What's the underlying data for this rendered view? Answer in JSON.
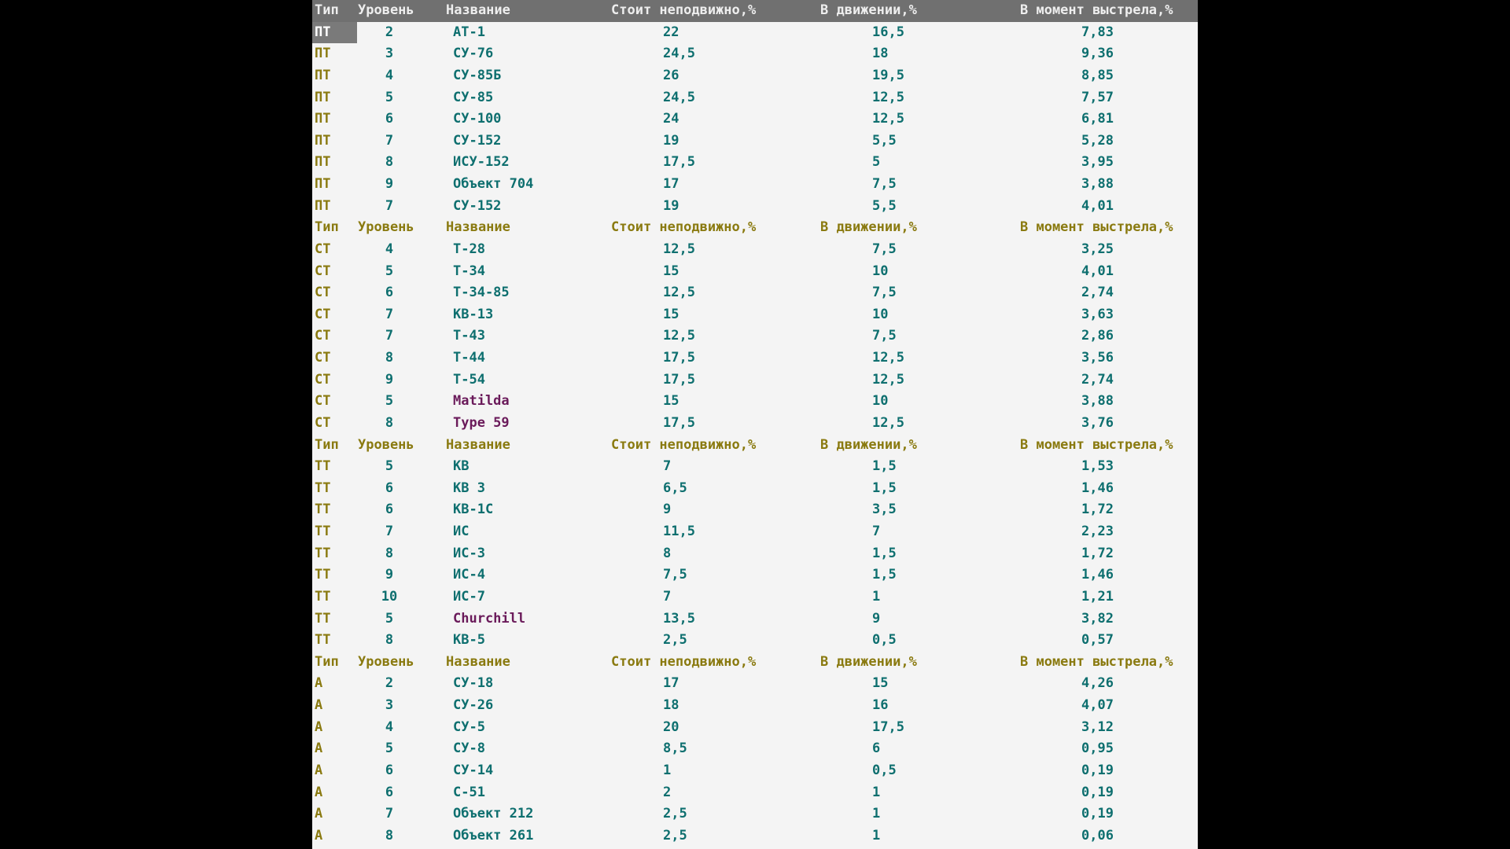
{
  "headers": {
    "type": "Тип",
    "level": "Уровень",
    "name": "Название",
    "standing": "Стоит неподвижно,%",
    "moving": "В движении,%",
    "shooting": "В момент выстрела,%"
  },
  "groups": [
    {
      "rows": [
        {
          "type": "ПТ",
          "level": "2",
          "name": "АТ-1",
          "standing": "22",
          "moving": "16,5",
          "shot": "7,83"
        },
        {
          "type": "ПТ",
          "level": "3",
          "name": "СУ-76",
          "standing": "24,5",
          "moving": "18",
          "shot": "9,36"
        },
        {
          "type": "ПТ",
          "level": "4",
          "name": "СУ-85Б",
          "standing": "26",
          "moving": "19,5",
          "shot": "8,85"
        },
        {
          "type": "ПТ",
          "level": "5",
          "name": "СУ-85",
          "standing": "24,5",
          "moving": "12,5",
          "shot": "7,57"
        },
        {
          "type": "ПТ",
          "level": "6",
          "name": "СУ-100",
          "standing": "24",
          "moving": "12,5",
          "shot": "6,81"
        },
        {
          "type": "ПТ",
          "level": "7",
          "name": "СУ-152",
          "standing": "19",
          "moving": "5,5",
          "shot": "5,28"
        },
        {
          "type": "ПТ",
          "level": "8",
          "name": "ИСУ-152",
          "standing": "17,5",
          "moving": "5",
          "shot": "3,95"
        },
        {
          "type": "ПТ",
          "level": "9",
          "name": "Объект 704",
          "standing": "17",
          "moving": "7,5",
          "shot": "3,88"
        },
        {
          "type": "ПТ",
          "level": "7",
          "name": "СУ-152",
          "standing": "19",
          "moving": "5,5",
          "shot": "4,01"
        }
      ]
    },
    {
      "rows": [
        {
          "type": "СТ",
          "level": "4",
          "name": "Т-28",
          "standing": "12,5",
          "moving": "7,5",
          "shot": "3,25"
        },
        {
          "type": "СТ",
          "level": "5",
          "name": "Т-34",
          "standing": "15",
          "moving": "10",
          "shot": "4,01"
        },
        {
          "type": "СТ",
          "level": "6",
          "name": "Т-34-85",
          "standing": "12,5",
          "moving": "7,5",
          "shot": "2,74"
        },
        {
          "type": "СТ",
          "level": "7",
          "name": "КВ-13",
          "standing": "15",
          "moving": "10",
          "shot": "3,63"
        },
        {
          "type": "СТ",
          "level": "7",
          "name": "Т-43",
          "standing": "12,5",
          "moving": "7,5",
          "shot": "2,86"
        },
        {
          "type": "СТ",
          "level": "8",
          "name": "Т-44",
          "standing": "17,5",
          "moving": "12,5",
          "shot": "3,56"
        },
        {
          "type": "СТ",
          "level": "9",
          "name": "Т-54",
          "standing": "17,5",
          "moving": "12,5",
          "shot": "2,74"
        },
        {
          "type": "СТ",
          "level": "5",
          "name": "Matilda",
          "standing": "15",
          "moving": "10",
          "shot": "3,88",
          "foreign": true
        },
        {
          "type": "СТ",
          "level": "8",
          "name": "Type 59",
          "standing": "17,5",
          "moving": "12,5",
          "shot": "3,76",
          "foreign": true
        }
      ]
    },
    {
      "rows": [
        {
          "type": "ТТ",
          "level": "5",
          "name": "КВ",
          "standing": "7",
          "moving": "1,5",
          "shot": "1,53"
        },
        {
          "type": "ТТ",
          "level": "6",
          "name": "КВ 3",
          "standing": "6,5",
          "moving": "1,5",
          "shot": "1,46"
        },
        {
          "type": "ТТ",
          "level": "6",
          "name": "КВ-1С",
          "standing": "9",
          "moving": "3,5",
          "shot": "1,72"
        },
        {
          "type": "ТТ",
          "level": "7",
          "name": "ИС",
          "standing": "11,5",
          "moving": "7",
          "shot": "2,23"
        },
        {
          "type": "ТТ",
          "level": "8",
          "name": "ИС-3",
          "standing": "8",
          "moving": "1,5",
          "shot": "1,72"
        },
        {
          "type": "ТТ",
          "level": "9",
          "name": "ИС-4",
          "standing": "7,5",
          "moving": "1,5",
          "shot": "1,46"
        },
        {
          "type": "ТТ",
          "level": "10",
          "name": "ИС-7",
          "standing": "7",
          "moving": "1",
          "shot": "1,21"
        },
        {
          "type": "ТТ",
          "level": "5",
          "name": "Churchill",
          "standing": "13,5",
          "moving": "9",
          "shot": "3,82",
          "foreign": true
        },
        {
          "type": "ТТ",
          "level": "8",
          "name": "КВ-5",
          "standing": "2,5",
          "moving": "0,5",
          "shot": "0,57"
        }
      ]
    },
    {
      "rows": [
        {
          "type": "А",
          "level": "2",
          "name": "СУ-18",
          "standing": "17",
          "moving": "15",
          "shot": "4,26"
        },
        {
          "type": "А",
          "level": "3",
          "name": "СУ-26",
          "standing": "18",
          "moving": "16",
          "shot": "4,07"
        },
        {
          "type": "А",
          "level": "4",
          "name": "СУ-5",
          "standing": "20",
          "moving": "17,5",
          "shot": "3,12"
        },
        {
          "type": "А",
          "level": "5",
          "name": "СУ-8",
          "standing": "8,5",
          "moving": "6",
          "shot": "0,95"
        },
        {
          "type": "А",
          "level": "6",
          "name": "СУ-14",
          "standing": "1",
          "moving": "0,5",
          "shot": "0,19"
        },
        {
          "type": "А",
          "level": "6",
          "name": "С-51",
          "standing": "2",
          "moving": "1",
          "shot": "0,19"
        },
        {
          "type": "А",
          "level": "7",
          "name": "Объект 212",
          "standing": "2,5",
          "moving": "1",
          "shot": "0,19"
        },
        {
          "type": "А",
          "level": "8",
          "name": "Объект 261",
          "standing": "2,5",
          "moving": "1",
          "shot": "0,06"
        }
      ]
    }
  ],
  "colors": {
    "background": "#000000",
    "sheet": "#f4f4f4",
    "header_text": "#8a7a10",
    "value_text": "#0e6f6f",
    "foreign_name_text": "#6a1a5a",
    "selection": "#7a7a7a"
  }
}
